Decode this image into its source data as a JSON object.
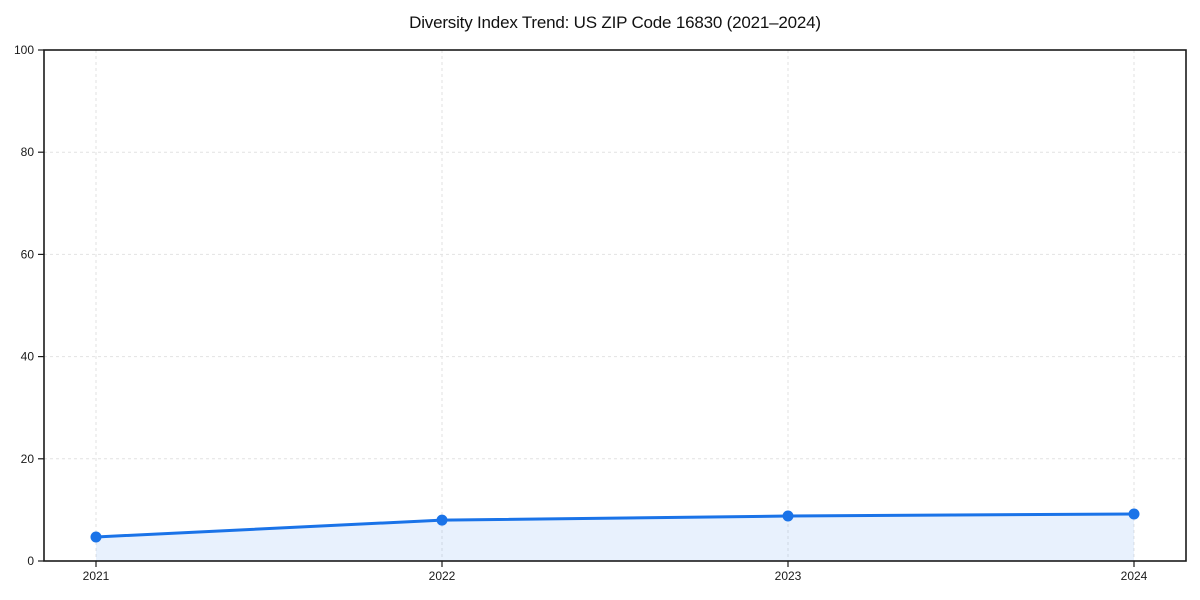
{
  "chart_data": {
    "type": "area",
    "title": "Diversity Index Trend: US ZIP Code 16830 (2021–2024)",
    "categories": [
      "2021",
      "2022",
      "2023",
      "2024"
    ],
    "values": [
      4.7,
      8.0,
      8.8,
      9.2
    ],
    "series_name": "Diversity Index",
    "xlabel": "",
    "ylabel": "",
    "ylim": [
      0,
      100
    ],
    "yticks": [
      0,
      20,
      40,
      60,
      80,
      100
    ],
    "grid": "dashed",
    "legend": "none",
    "colors": {
      "line": "#1a73e8",
      "marker": "#1a73e8",
      "fill": "rgba(26,115,232,0.10)",
      "axis": "#1a1a1a",
      "grid": "#e2e2e2",
      "tick_label": "#1a1a1a",
      "background": "#ffffff"
    }
  }
}
